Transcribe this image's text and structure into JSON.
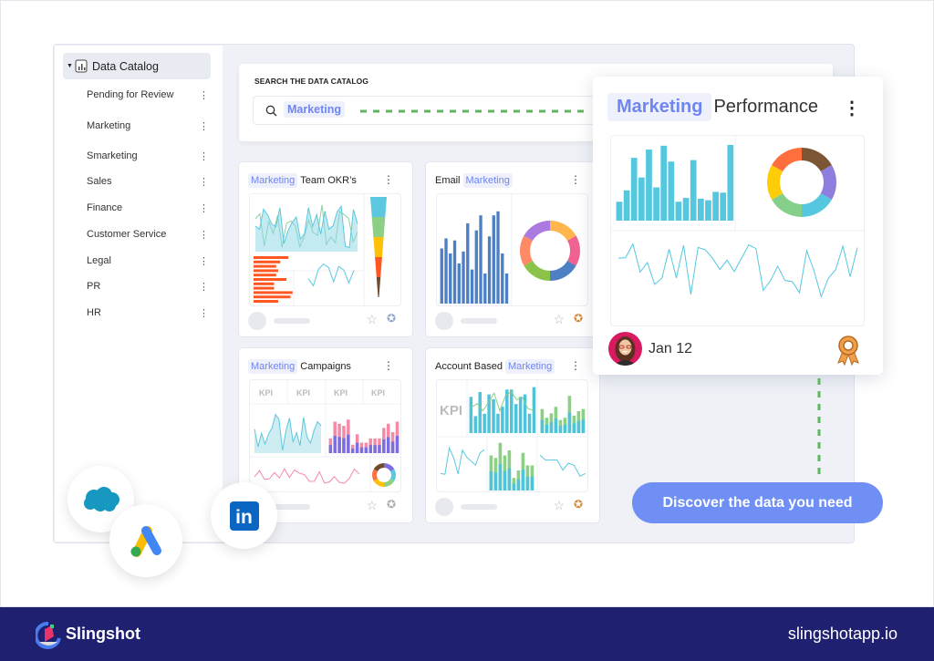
{
  "sidebar": {
    "root": "Data Catalog",
    "items": [
      {
        "label": "Pending for Review"
      },
      {
        "label": "Marketing"
      },
      {
        "label": "Smarketing"
      },
      {
        "label": "Sales"
      },
      {
        "label": "Finance"
      },
      {
        "label": "Customer Service"
      },
      {
        "label": "Legal"
      },
      {
        "label": "PR"
      },
      {
        "label": "HR"
      }
    ]
  },
  "search": {
    "label": "SEARCH THE DATA CATALOG",
    "value": "Marketing"
  },
  "cards": [
    {
      "tag": "Marketing",
      "title": "Team OKR’s"
    },
    {
      "pre": "Email",
      "tag": "Marketing"
    },
    {
      "tag": "Marketing",
      "title": "Campaigns"
    },
    {
      "pre": "Account Based",
      "tag": "Marketing"
    }
  ],
  "kpi_label": "KPI",
  "featured": {
    "tag": "Marketing",
    "title": "Performance",
    "date": "Jan 12"
  },
  "cta": "Discover the data you need",
  "integrations": [
    "salesforce-icon",
    "google-ads-icon",
    "linkedin-icon"
  ],
  "linkedin_text": "in",
  "footer": {
    "brand": "Slingshot",
    "url": "slingshotapp.io"
  },
  "colors": {
    "accent": "#6f8ff4",
    "footer": "#1f2170",
    "chip_text": "#6f86f0",
    "dashed": "#5cb85c"
  }
}
